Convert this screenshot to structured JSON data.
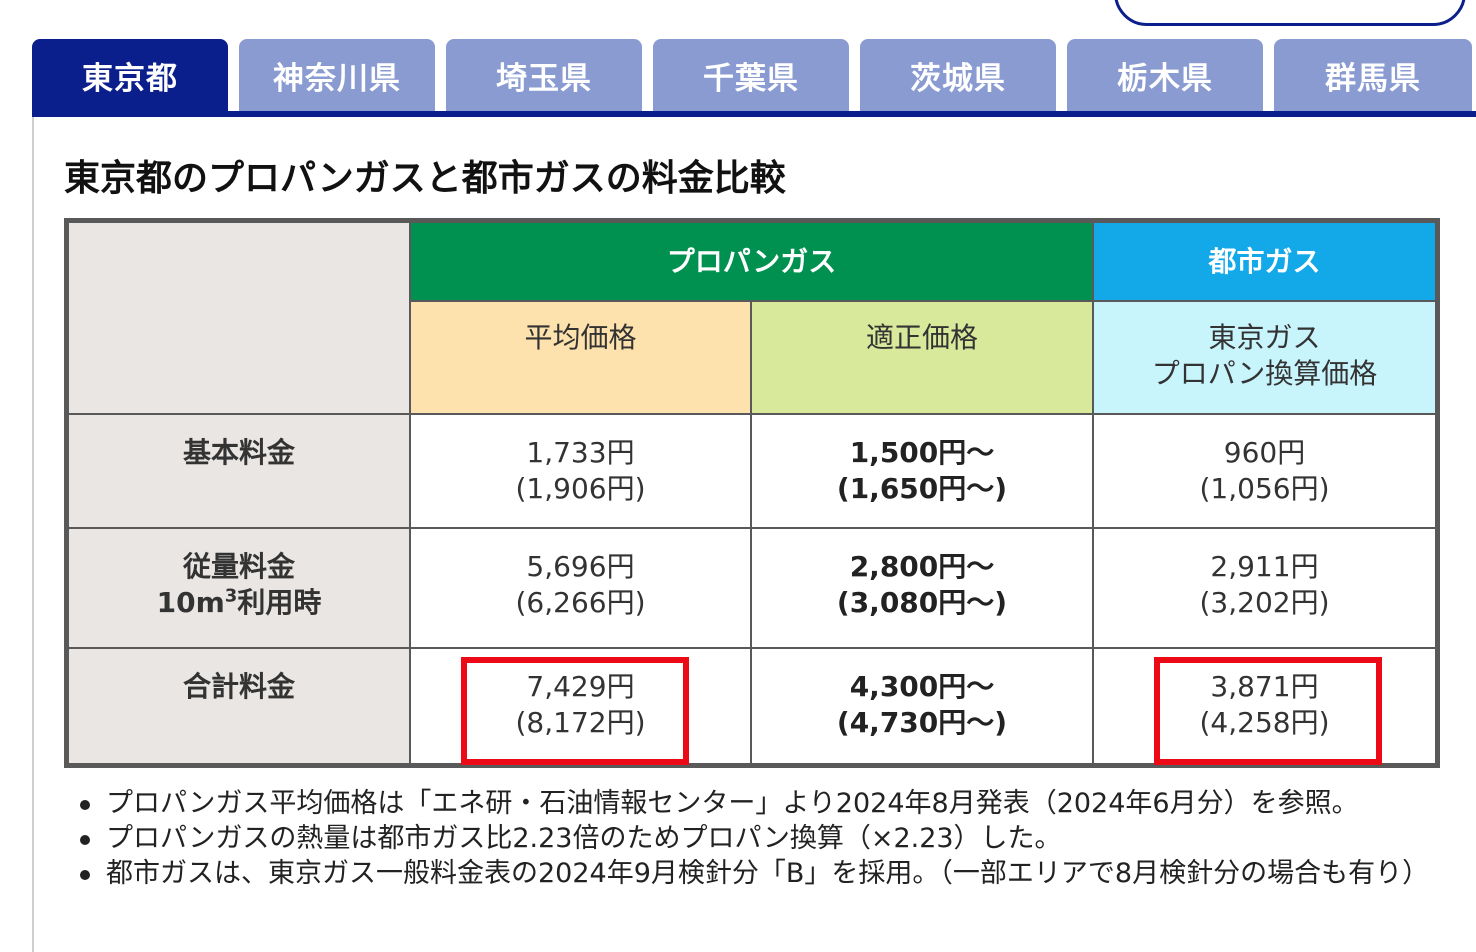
{
  "tabs": [
    {
      "label": "東京都",
      "active": true
    },
    {
      "label": "神奈川県",
      "active": false
    },
    {
      "label": "埼玉県",
      "active": false
    },
    {
      "label": "千葉県",
      "active": false
    },
    {
      "label": "茨城県",
      "active": false
    },
    {
      "label": "栃木県",
      "active": false
    },
    {
      "label": "群馬県",
      "active": false
    }
  ],
  "title": "東京都のプロパンガスと都市ガスの料金比較",
  "table": {
    "group_propane": "プロパンガス",
    "group_city": "都市ガス",
    "sub_avg": "平均価格",
    "sub_fair": "適正価格",
    "sub_city_line1": "東京ガス",
    "sub_city_line2": "プロパン換算価格",
    "rows": [
      {
        "head_line1": "基本料金",
        "head_line2": "",
        "head_sup": "",
        "head_tail": "",
        "avg": [
          "1,733円",
          "(1,906円)"
        ],
        "fair": [
          "1,500円〜",
          "(1,650円〜)"
        ],
        "city": [
          "960円",
          "(1,056円)"
        ]
      },
      {
        "head_line1": "従量料金",
        "head_line2": "10m",
        "head_sup": "3",
        "head_tail": "利用時",
        "avg": [
          "5,696円",
          "(6,266円)"
        ],
        "fair": [
          "2,800円〜",
          "(3,080円〜)"
        ],
        "city": [
          "2,911円",
          "(3,202円)"
        ]
      },
      {
        "head_line1": "合計料金",
        "head_line2": "",
        "head_sup": "",
        "head_tail": "",
        "avg": [
          "7,429円",
          "(8,172円)"
        ],
        "fair": [
          "4,300円〜",
          "(4,730円〜)"
        ],
        "city": [
          "3,871円",
          "(4,258円)"
        ]
      }
    ]
  },
  "colors": {
    "tab_active": "#0a1e8c",
    "tab_inactive": "#8a9bd2",
    "propane_header": "#009150",
    "city_header": "#13a9e9",
    "avg_bg": "#fde2ad",
    "fair_bg": "#d9e99c",
    "city_bg": "#c8f4fc",
    "highlight": "#ec0a17"
  },
  "notes": [
    "プロパンガス平均価格は「エネ研・石油情報センター」より2024年8月発表（2024年6月分）を参照。",
    "プロパンガスの熱量は都市ガス比2.23倍のためプロパン換算（×2.23）した。",
    "都市ガスは、東京ガス一般料金表の2024年9月検針分「B」を採用。（一部エリアで8月検針分の場合も有り）"
  ]
}
